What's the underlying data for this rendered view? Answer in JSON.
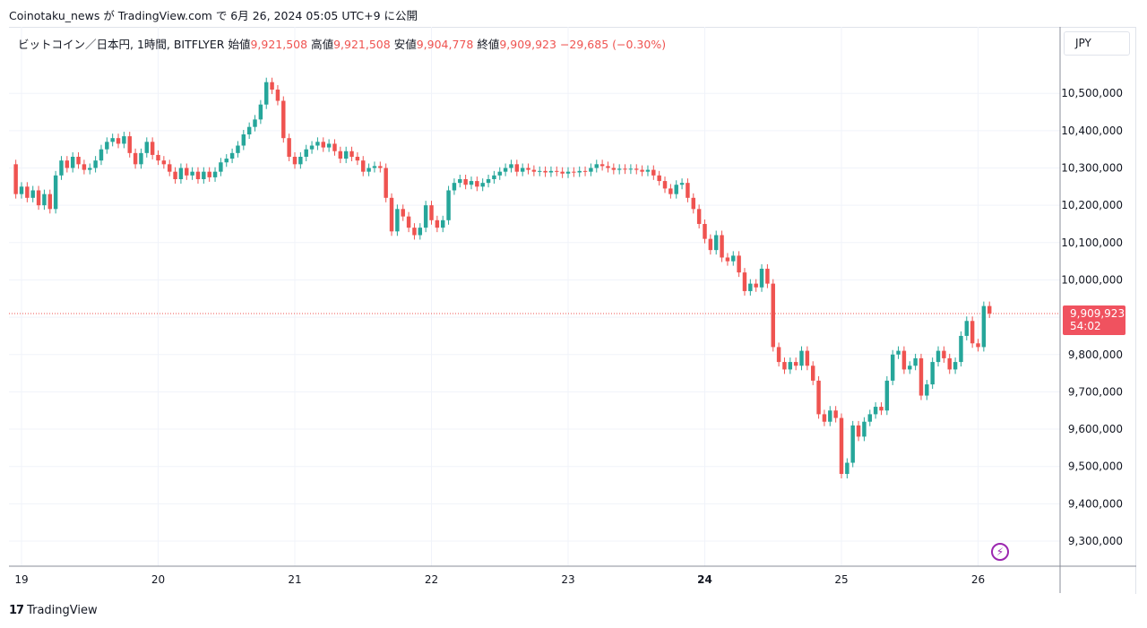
{
  "header": {
    "text": "Coinotaku_news が TradingView.com で 6月 26, 2024 05:05 UTC+9 に公開"
  },
  "legend": {
    "symbol": "ビットコイン／日本円, 1時間, BITFLYER",
    "open_label": "始値",
    "open_value": "9,921,508",
    "high_label": "高値",
    "high_value": "9,921,508",
    "low_label": "安値",
    "low_value": "9,904,778",
    "close_label": "終値",
    "close_value": "9,909,923",
    "change": "−29,685 (−0.30%)"
  },
  "currency_button": "JPY",
  "last_price": {
    "value": "9,909,923",
    "countdown": "54:02"
  },
  "branding": {
    "name": "TradingView",
    "mark": "17"
  },
  "colors": {
    "up": "#26a69a",
    "down": "#ef5350",
    "grid": "#f0f3fa",
    "axis_text": "#131722"
  },
  "icons": {
    "bolt": "lightning-bolt-icon"
  },
  "chart_data": {
    "type": "candlestick",
    "title": "",
    "xlabel": "",
    "ylabel": "",
    "ylim": [
      9250000,
      10580000
    ],
    "y_ticks": [
      "10,500,000",
      "10,400,000",
      "10,300,000",
      "10,200,000",
      "10,100,000",
      "10,000,000",
      "9,800,000",
      "9,700,000",
      "9,600,000",
      "9,500,000",
      "9,400,000",
      "9,300,000"
    ],
    "y_tick_values": [
      10500000,
      10400000,
      10300000,
      10200000,
      10100000,
      10000000,
      9800000,
      9700000,
      9600000,
      9500000,
      9400000,
      9300000
    ],
    "x_ticks": [
      "19",
      "20",
      "21",
      "22",
      "23",
      "24",
      "25",
      "26"
    ],
    "x_tick_hours": [
      0,
      24,
      48,
      72,
      96,
      120,
      144,
      168
    ],
    "bold_x_tick": "24",
    "x_start_hour": -1,
    "x_end_hour": 190,
    "last_price_value": 9909923,
    "candles": [
      [
        10310000,
        10230000
      ],
      [
        10230000,
        10250000
      ],
      [
        10250000,
        10220000
      ],
      [
        10220000,
        10240000
      ],
      [
        10240000,
        10200000
      ],
      [
        10200000,
        10230000
      ],
      [
        10230000,
        10190000
      ],
      [
        10190000,
        10280000
      ],
      [
        10280000,
        10320000
      ],
      [
        10320000,
        10300000
      ],
      [
        10300000,
        10330000
      ],
      [
        10330000,
        10310000
      ],
      [
        10310000,
        10295000
      ],
      [
        10295000,
        10300000
      ],
      [
        10300000,
        10320000
      ],
      [
        10320000,
        10350000
      ],
      [
        10350000,
        10370000
      ],
      [
        10370000,
        10380000
      ],
      [
        10380000,
        10365000
      ],
      [
        10365000,
        10385000
      ],
      [
        10385000,
        10340000
      ],
      [
        10340000,
        10310000
      ],
      [
        10310000,
        10340000
      ],
      [
        10340000,
        10370000
      ],
      [
        10370000,
        10335000
      ],
      [
        10335000,
        10320000
      ],
      [
        10320000,
        10310000
      ],
      [
        10310000,
        10290000
      ],
      [
        10290000,
        10270000
      ],
      [
        10270000,
        10300000
      ],
      [
        10300000,
        10280000
      ],
      [
        10280000,
        10290000
      ],
      [
        10290000,
        10270000
      ],
      [
        10270000,
        10290000
      ],
      [
        10290000,
        10275000
      ],
      [
        10275000,
        10290000
      ],
      [
        10290000,
        10315000
      ],
      [
        10315000,
        10325000
      ],
      [
        10325000,
        10340000
      ],
      [
        10340000,
        10360000
      ],
      [
        10360000,
        10390000
      ],
      [
        10390000,
        10410000
      ],
      [
        10410000,
        10430000
      ],
      [
        10430000,
        10470000
      ],
      [
        10470000,
        10530000
      ],
      [
        10530000,
        10510000
      ],
      [
        10510000,
        10480000
      ],
      [
        10480000,
        10380000
      ],
      [
        10380000,
        10330000
      ],
      [
        10330000,
        10310000
      ],
      [
        10310000,
        10330000
      ],
      [
        10330000,
        10350000
      ],
      [
        10350000,
        10360000
      ],
      [
        10360000,
        10370000
      ],
      [
        10370000,
        10355000
      ],
      [
        10355000,
        10365000
      ],
      [
        10365000,
        10345000
      ],
      [
        10345000,
        10325000
      ],
      [
        10325000,
        10345000
      ],
      [
        10345000,
        10330000
      ],
      [
        10330000,
        10320000
      ],
      [
        10320000,
        10290000
      ],
      [
        10290000,
        10300000
      ],
      [
        10300000,
        10305000
      ],
      [
        10305000,
        10300000
      ],
      [
        10300000,
        10220000
      ],
      [
        10220000,
        10130000
      ],
      [
        10130000,
        10190000
      ],
      [
        10190000,
        10170000
      ],
      [
        10170000,
        10140000
      ],
      [
        10140000,
        10120000
      ],
      [
        10120000,
        10140000
      ],
      [
        10140000,
        10200000
      ],
      [
        10200000,
        10160000
      ],
      [
        10160000,
        10140000
      ],
      [
        10140000,
        10160000
      ],
      [
        10160000,
        10240000
      ],
      [
        10240000,
        10260000
      ],
      [
        10260000,
        10270000
      ],
      [
        10270000,
        10255000
      ],
      [
        10255000,
        10265000
      ],
      [
        10265000,
        10250000
      ],
      [
        10250000,
        10260000
      ],
      [
        10260000,
        10270000
      ],
      [
        10270000,
        10280000
      ],
      [
        10280000,
        10290000
      ],
      [
        10290000,
        10300000
      ],
      [
        10300000,
        10310000
      ],
      [
        10310000,
        10290000
      ],
      [
        10290000,
        10300000
      ],
      [
        10300000,
        10295000
      ],
      [
        10295000,
        10290000
      ],
      [
        10290000,
        10292000
      ],
      [
        10292000,
        10288000
      ],
      [
        10288000,
        10292000
      ],
      [
        10292000,
        10290000
      ],
      [
        10290000,
        10285000
      ],
      [
        10285000,
        10290000
      ],
      [
        10290000,
        10288000
      ],
      [
        10288000,
        10292000
      ],
      [
        10292000,
        10290000
      ],
      [
        10290000,
        10300000
      ],
      [
        10300000,
        10310000
      ],
      [
        10310000,
        10305000
      ],
      [
        10305000,
        10300000
      ],
      [
        10300000,
        10295000
      ],
      [
        10295000,
        10298000
      ],
      [
        10298000,
        10296000
      ],
      [
        10296000,
        10298000
      ],
      [
        10298000,
        10295000
      ],
      [
        10295000,
        10290000
      ],
      [
        10290000,
        10295000
      ],
      [
        10295000,
        10280000
      ],
      [
        10280000,
        10265000
      ],
      [
        10265000,
        10245000
      ],
      [
        10245000,
        10230000
      ],
      [
        10230000,
        10255000
      ],
      [
        10255000,
        10260000
      ],
      [
        10260000,
        10220000
      ],
      [
        10220000,
        10190000
      ],
      [
        10190000,
        10150000
      ],
      [
        10150000,
        10110000
      ],
      [
        10110000,
        10080000
      ],
      [
        10080000,
        10120000
      ],
      [
        10120000,
        10060000
      ],
      [
        10060000,
        10050000
      ],
      [
        10050000,
        10065000
      ],
      [
        10065000,
        10020000
      ],
      [
        10020000,
        9970000
      ],
      [
        9970000,
        9990000
      ],
      [
        9990000,
        9980000
      ],
      [
        9980000,
        10030000
      ],
      [
        10030000,
        9990000
      ],
      [
        9990000,
        9820000
      ],
      [
        9820000,
        9780000
      ],
      [
        9780000,
        9760000
      ],
      [
        9760000,
        9780000
      ],
      [
        9780000,
        9770000
      ],
      [
        9770000,
        9810000
      ],
      [
        9810000,
        9770000
      ],
      [
        9770000,
        9730000
      ],
      [
        9730000,
        9640000
      ],
      [
        9640000,
        9620000
      ],
      [
        9620000,
        9650000
      ],
      [
        9650000,
        9630000
      ],
      [
        9630000,
        9480000
      ],
      [
        9480000,
        9510000
      ],
      [
        9510000,
        9610000
      ],
      [
        9610000,
        9580000
      ],
      [
        9580000,
        9620000
      ],
      [
        9620000,
        9640000
      ],
      [
        9640000,
        9660000
      ],
      [
        9660000,
        9650000
      ],
      [
        9650000,
        9730000
      ],
      [
        9730000,
        9800000
      ],
      [
        9800000,
        9810000
      ],
      [
        9810000,
        9760000
      ],
      [
        9760000,
        9770000
      ],
      [
        9770000,
        9790000
      ],
      [
        9790000,
        9690000
      ],
      [
        9690000,
        9720000
      ],
      [
        9720000,
        9780000
      ],
      [
        9780000,
        9810000
      ],
      [
        9810000,
        9790000
      ],
      [
        9790000,
        9760000
      ],
      [
        9760000,
        9780000
      ],
      [
        9780000,
        9850000
      ],
      [
        9850000,
        9890000
      ],
      [
        9890000,
        9830000
      ],
      [
        9830000,
        9820000
      ],
      [
        9820000,
        9930000
      ],
      [
        9930000,
        9910000
      ]
    ]
  }
}
